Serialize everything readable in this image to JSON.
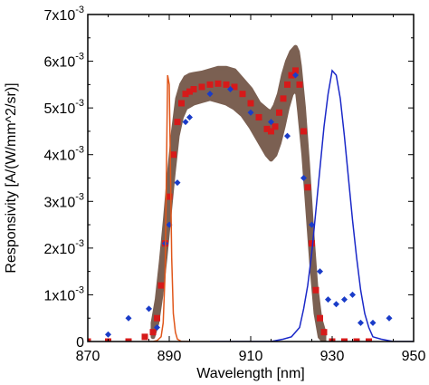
{
  "chart_data": {
    "type": "scatter",
    "title": "",
    "xlabel": "Wavelength [nm]",
    "ylabel": "Responsivity [A/(W/mm^2/sr)]",
    "xlim": [
      870,
      950
    ],
    "ylim": [
      0,
      0.007
    ],
    "grid": false,
    "legend": "none",
    "x_ticks": [
      870,
      890,
      910,
      930,
      950
    ],
    "x_tick_labels": [
      "870",
      "890",
      "910",
      "930",
      "950"
    ],
    "y_ticks": [
      0,
      0.001,
      0.002,
      0.003,
      0.004,
      0.005,
      0.006,
      0.007
    ],
    "y_tick_labels": [
      {
        "base": "0",
        "exp": ""
      },
      {
        "base": "1x10",
        "exp": "-3"
      },
      {
        "base": "2x10",
        "exp": "-3"
      },
      {
        "base": "3x10",
        "exp": "-3"
      },
      {
        "base": "4x10",
        "exp": "-3"
      },
      {
        "base": "5x10",
        "exp": "-3"
      },
      {
        "base": "6x10",
        "exp": "-3"
      },
      {
        "base": "7x10",
        "exp": "-3"
      }
    ],
    "series": [
      {
        "style": "band",
        "color": "#7b6052",
        "x": [
          886,
          887,
          888,
          889,
          890,
          891,
          892,
          893,
          894,
          895,
          896,
          898,
          900,
          902,
          904,
          906,
          908,
          910,
          912,
          914,
          915,
          916,
          917,
          918,
          919,
          920,
          921,
          921.5,
          922,
          923,
          924,
          925,
          926,
          927,
          928
        ],
        "upper": [
          0.0004,
          0.0009,
          0.0017,
          0.0026,
          0.0036,
          0.0045,
          0.0052,
          0.0055,
          0.00565,
          0.0057,
          0.00572,
          0.00575,
          0.0058,
          0.00585,
          0.00585,
          0.0058,
          0.0056,
          0.0054,
          0.0051,
          0.00495,
          0.0049,
          0.00505,
          0.0053,
          0.0057,
          0.006,
          0.0062,
          0.0063,
          0.0062,
          0.0059,
          0.005,
          0.0038,
          0.0024,
          0.0012,
          0.0005,
          0.0002
        ],
        "lower": [
          0.0001,
          0.0004,
          0.001,
          0.0018,
          0.0027,
          0.0036,
          0.0044,
          0.0048,
          0.005,
          0.00505,
          0.0051,
          0.00515,
          0.0052,
          0.00515,
          0.0051,
          0.005,
          0.00485,
          0.0046,
          0.0043,
          0.004,
          0.0039,
          0.004,
          0.00425,
          0.0046,
          0.005,
          0.0053,
          0.0054,
          0.0053,
          0.0049,
          0.004,
          0.0028,
          0.0016,
          0.0006,
          0.0001,
          0.0
        ]
      },
      {
        "style": "markers-square",
        "color": "#d61a1a",
        "x": [
          870,
          875,
          880,
          884,
          886,
          887,
          888,
          889,
          890,
          891,
          892,
          893,
          894,
          895,
          896,
          898,
          900,
          902,
          904,
          906,
          908,
          910,
          912,
          914,
          915,
          916,
          917,
          918,
          919,
          920,
          921,
          922,
          923,
          924,
          925,
          926,
          927,
          928,
          930,
          933,
          936,
          939
        ],
        "y": [
          0.0,
          0.0,
          0.0,
          0.0001,
          0.0002,
          0.0005,
          0.0012,
          0.0021,
          0.0031,
          0.004,
          0.0047,
          0.0051,
          0.0053,
          0.00535,
          0.0054,
          0.00545,
          0.0055,
          0.00552,
          0.0055,
          0.00545,
          0.0053,
          0.0051,
          0.0048,
          0.00455,
          0.0045,
          0.0046,
          0.0049,
          0.0052,
          0.0055,
          0.0057,
          0.0058,
          0.0055,
          0.0045,
          0.0033,
          0.0021,
          0.0011,
          0.0005,
          0.0002,
          0.0,
          0.0,
          0.0,
          0.0
        ]
      },
      {
        "style": "markers-diamond",
        "color": "#1a3cc8",
        "x": [
          875,
          880,
          885,
          887,
          889,
          890,
          892,
          894,
          895,
          900,
          905,
          910,
          915,
          919,
          921,
          923,
          925,
          927,
          929,
          931,
          933,
          935,
          937,
          940,
          944
        ],
        "y": [
          0.00015,
          0.0005,
          0.0007,
          0.0003,
          0.0021,
          0.0025,
          0.0034,
          0.0047,
          0.0048,
          0.0053,
          0.0054,
          0.0049,
          0.0047,
          0.0044,
          0.0057,
          0.0035,
          0.0025,
          0.0015,
          0.0009,
          0.0008,
          0.0009,
          0.001,
          0.0004,
          0.0004,
          0.0005
        ]
      },
      {
        "style": "line",
        "color": "#1a28c8",
        "x": [
          900,
          905,
          910,
          915,
          918,
          920,
          922,
          923,
          924,
          925,
          926,
          927,
          928,
          929,
          930,
          931,
          932,
          933,
          934,
          935,
          936,
          937,
          938,
          939,
          940,
          942,
          945,
          950
        ],
        "y": [
          0.0,
          0.0,
          0.0,
          0.0,
          5e-05,
          0.0001,
          0.0003,
          0.0007,
          0.0012,
          0.0019,
          0.0028,
          0.0037,
          0.0046,
          0.0053,
          0.0058,
          0.0057,
          0.0052,
          0.0044,
          0.0035,
          0.0026,
          0.0018,
          0.0011,
          0.0006,
          0.0003,
          0.0001,
          5e-05,
          0.0,
          0.0
        ]
      },
      {
        "style": "line",
        "color": "#e0561a",
        "x": [
          885,
          886,
          887,
          888,
          888.5,
          889,
          889.3,
          889.6,
          890,
          890.3,
          890.6,
          891,
          891.5,
          892,
          893,
          895
        ],
        "y": [
          0.0,
          0.0,
          2e-05,
          0.0001,
          0.0004,
          0.0015,
          0.0035,
          0.0057,
          0.0055,
          0.0038,
          0.0018,
          0.0006,
          0.0002,
          5e-05,
          0.0,
          0.0
        ]
      }
    ]
  }
}
